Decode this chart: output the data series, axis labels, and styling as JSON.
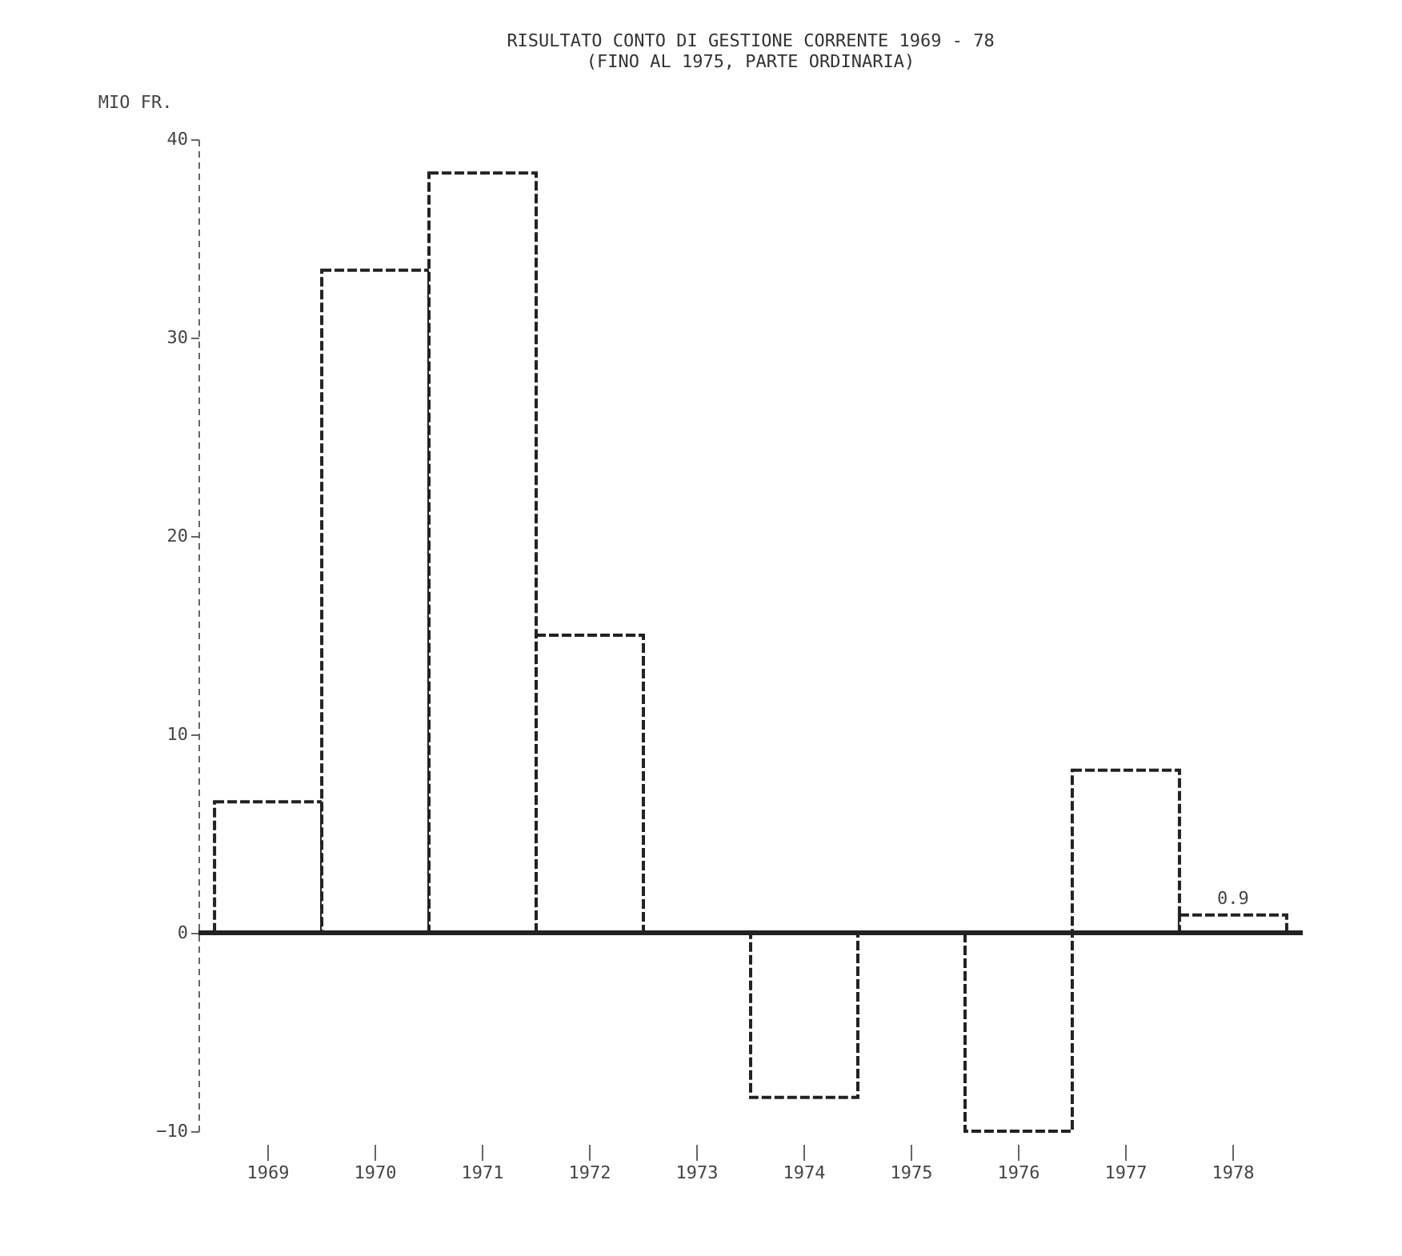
{
  "chart_data": {
    "type": "bar",
    "title": [
      "RISULTATO CONTO DI GESTIONE CORRENTE 1969 - 78",
      "(FINO AL 1975, PARTE ORDINARIA)"
    ],
    "ylabel": "MIO FR.",
    "categories": [
      "1969",
      "1970",
      "1971",
      "1972",
      "1973",
      "1974",
      "1975",
      "1976",
      "1977",
      "1978"
    ],
    "values": [
      6.6,
      33.4,
      38.3,
      15.0,
      0,
      -8.3,
      0,
      -10.0,
      8.2,
      0.9
    ],
    "value_labels": [
      null,
      null,
      null,
      null,
      null,
      null,
      null,
      null,
      null,
      "0.9"
    ],
    "color": "#222222",
    "ylim": [
      -10,
      40
    ],
    "yticks": [
      -10,
      0,
      10,
      20,
      30,
      40
    ]
  }
}
